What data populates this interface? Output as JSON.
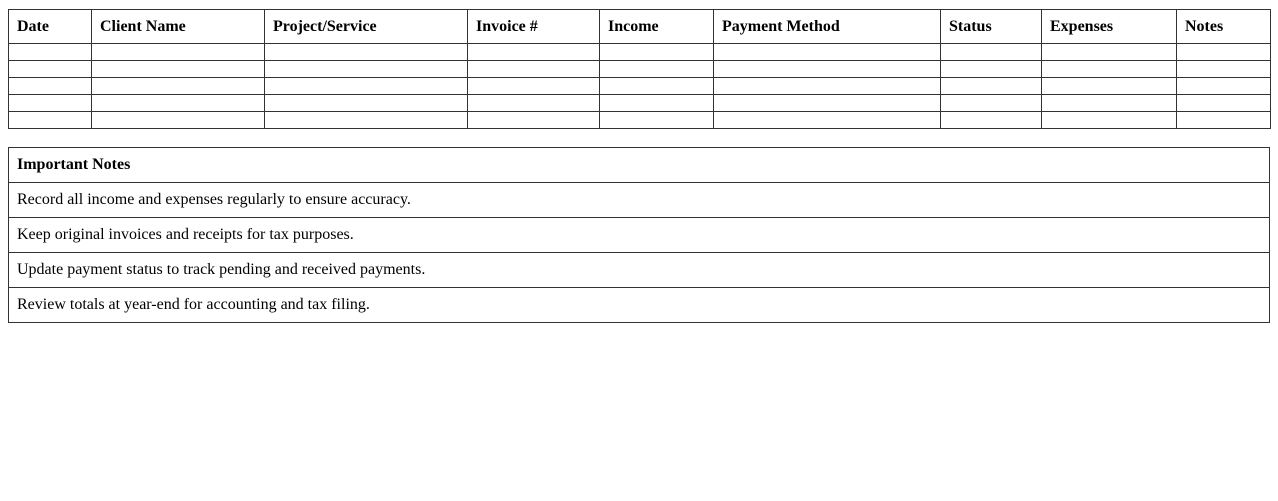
{
  "ledger": {
    "headers": [
      "Date",
      "Client Name",
      "Project/Service",
      "Invoice #",
      "Income",
      "Payment Method",
      "Status",
      "Expenses",
      "Notes"
    ],
    "empty_rows": 5
  },
  "notes": {
    "title": "Important Notes",
    "items": [
      "Record all income and expenses regularly to ensure accuracy.",
      "Keep original invoices and receipts for tax purposes.",
      "Update payment status to track pending and received payments.",
      "Review totals at year-end for accounting and tax filing."
    ]
  }
}
